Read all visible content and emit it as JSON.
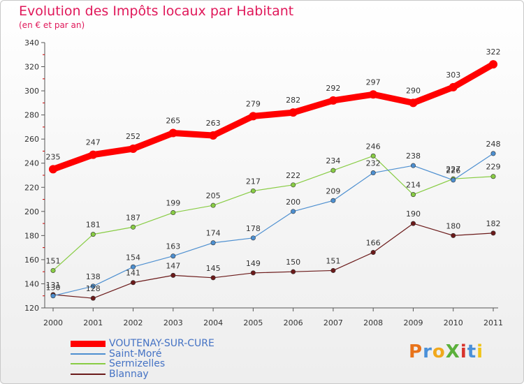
{
  "header": {
    "title": "Evolution des Impôts locaux par Habitant",
    "subtitle": "(en € et par an)"
  },
  "chart_data": {
    "type": "line",
    "title": "Evolution des Impôts locaux par Habitant",
    "subtitle": "(en € et par an)",
    "xlabel": "",
    "ylabel": "",
    "categories": [
      "2000",
      "2001",
      "2002",
      "2003",
      "2004",
      "2005",
      "2006",
      "2007",
      "2008",
      "2009",
      "2010",
      "2011"
    ],
    "yticks": [
      120,
      140,
      160,
      180,
      200,
      220,
      240,
      260,
      280,
      300,
      320,
      340
    ],
    "ylim": [
      120,
      340
    ],
    "grid": "none",
    "legend_position": "bottom-left",
    "series": [
      {
        "name": "VOUTENAY-SUR-CURE",
        "color": "#ff0000",
        "values": [
          235,
          247,
          252,
          265,
          263,
          279,
          282,
          292,
          297,
          290,
          303,
          322
        ]
      },
      {
        "name": "Saint-Moré",
        "color": "#4d8fd0",
        "values": [
          130,
          138,
          154,
          163,
          174,
          178,
          200,
          209,
          232,
          238,
          226,
          248
        ]
      },
      {
        "name": "Sermizelles",
        "color": "#88cc44",
        "values": [
          151,
          181,
          187,
          199,
          205,
          217,
          222,
          234,
          246,
          214,
          227,
          229
        ]
      },
      {
        "name": "Blannay",
        "color": "#6b1a1a",
        "values": [
          131,
          128,
          141,
          147,
          145,
          149,
          150,
          151,
          166,
          190,
          180,
          182
        ]
      }
    ]
  },
  "logo": {
    "text": "ProXiti",
    "letter_colors": [
      "#e8731a",
      "#4a90d9",
      "#f0a81c",
      "#5bb03b",
      "#d8332c",
      "#4a90d9",
      "#f0c419"
    ]
  }
}
